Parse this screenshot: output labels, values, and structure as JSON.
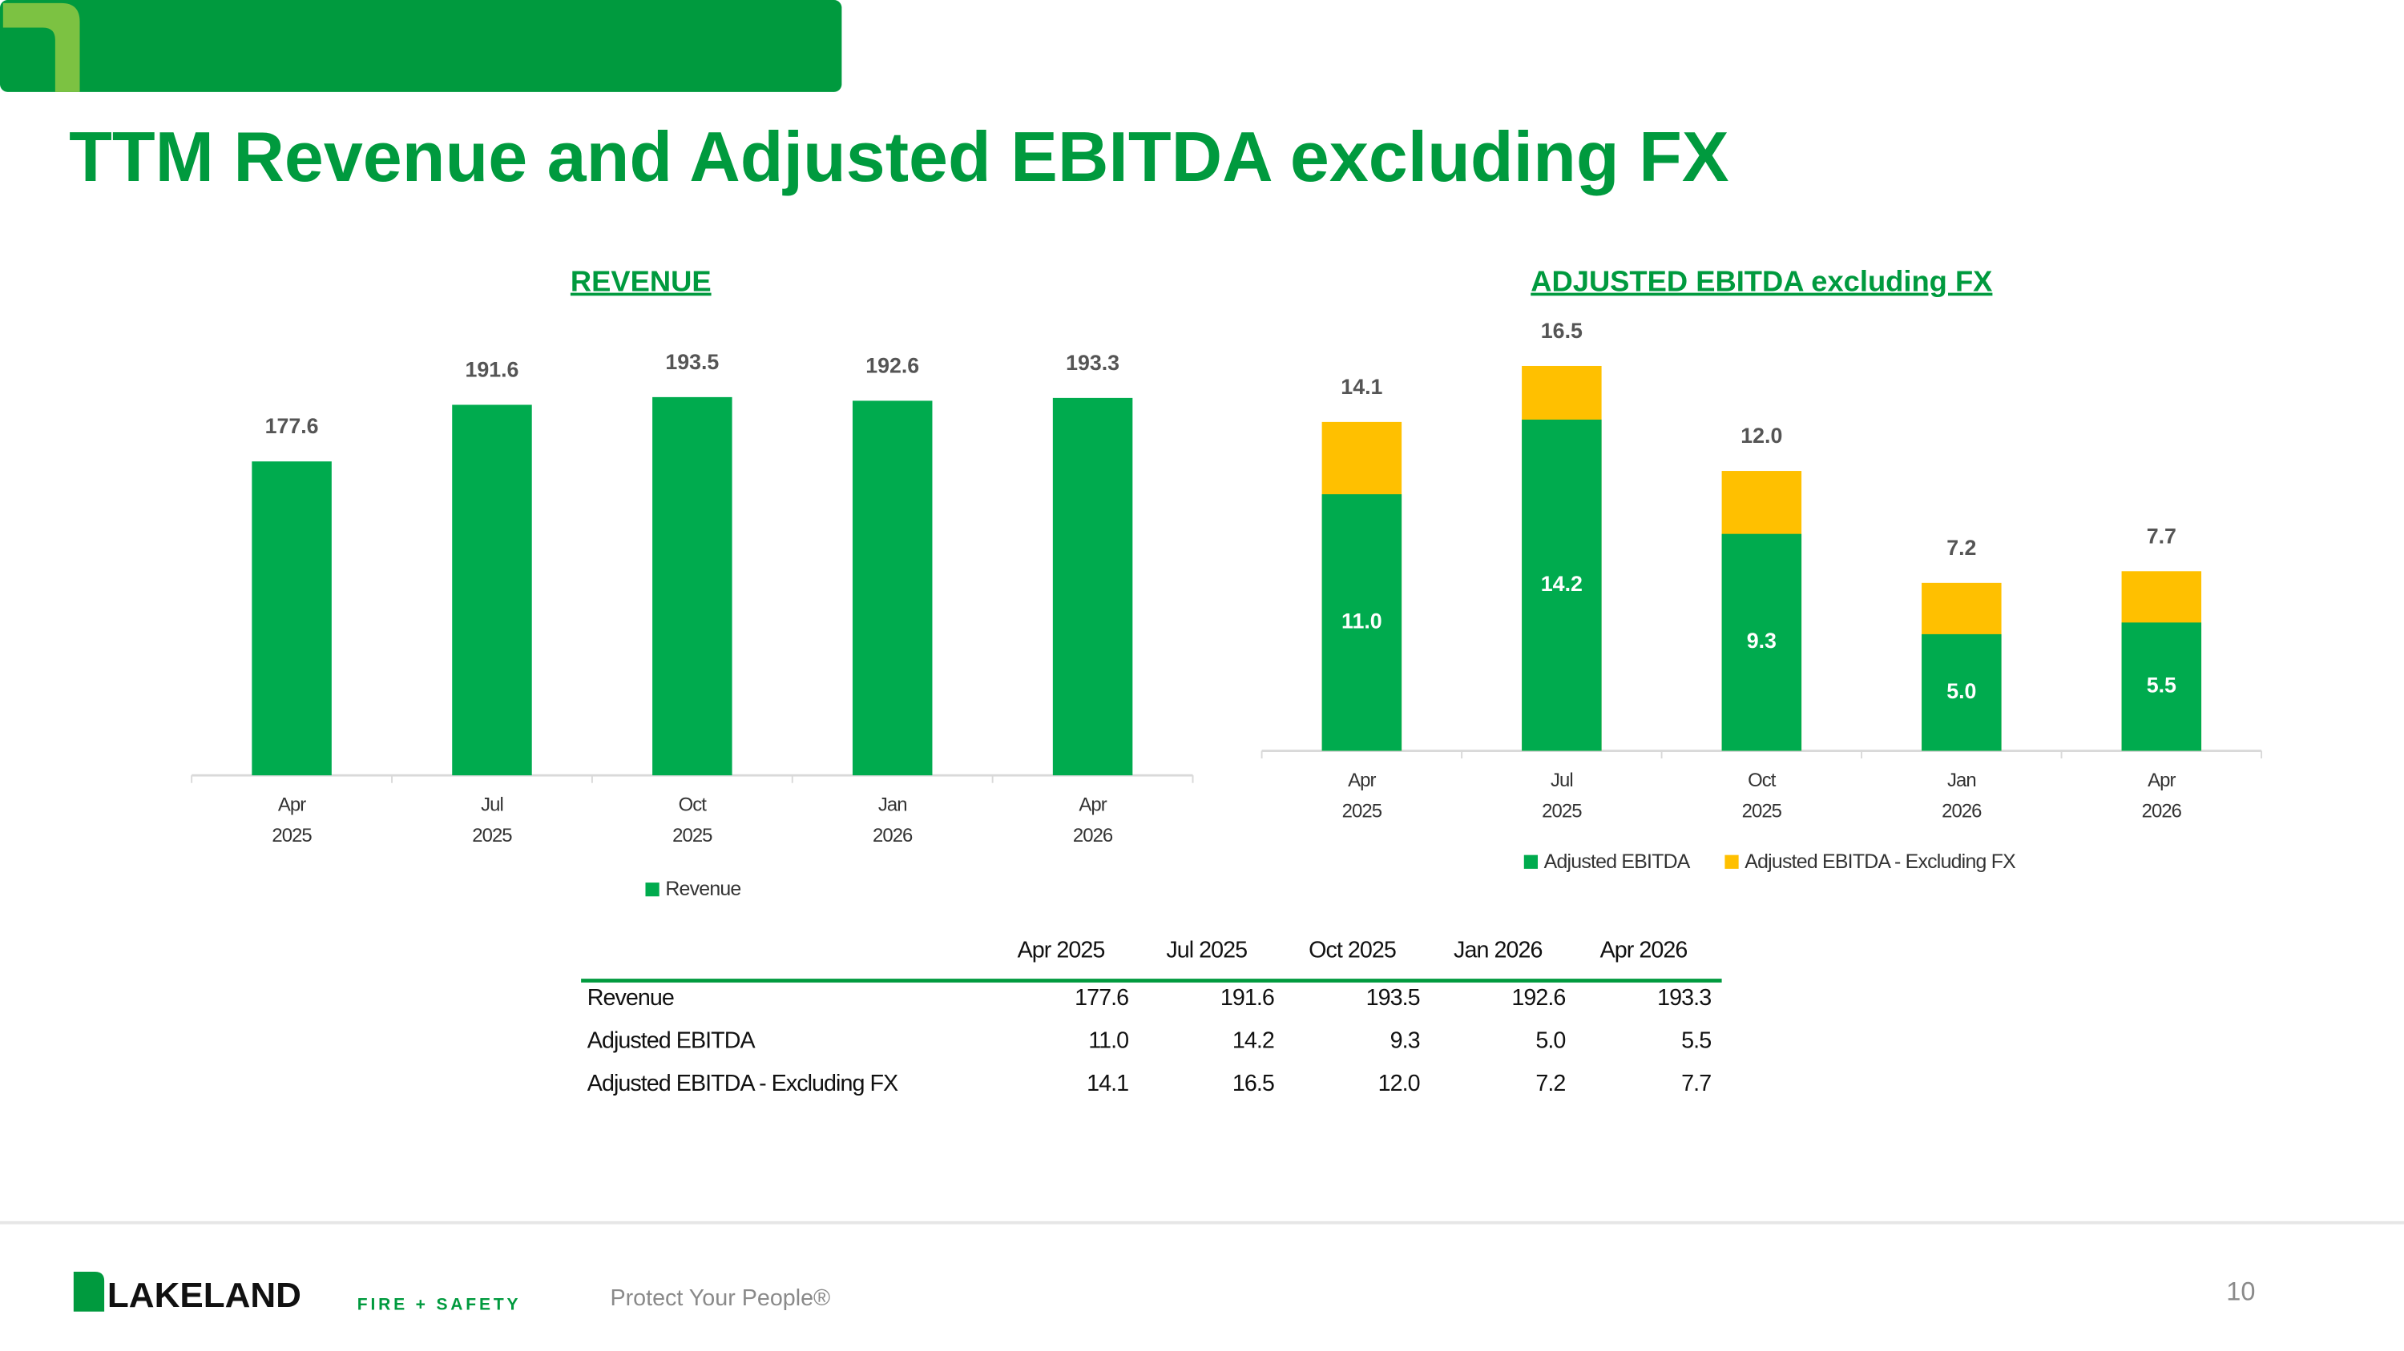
{
  "title": "TTM Revenue and Adjusted EBITDA excluding FX",
  "chart_data": [
    {
      "type": "bar",
      "title": "REVENUE",
      "categories": [
        [
          "Apr",
          "2025"
        ],
        [
          "Jul",
          "2025"
        ],
        [
          "Oct",
          "2025"
        ],
        [
          "Jan",
          "2026"
        ],
        [
          "Apr",
          "2026"
        ]
      ],
      "series": [
        {
          "name": "Revenue",
          "color": "#00ab4e",
          "values": [
            177.6,
            191.6,
            193.5,
            192.6,
            193.3
          ]
        }
      ],
      "ylim": [
        100,
        200
      ]
    },
    {
      "type": "bar",
      "title": "ADJUSTED EBITDA excluding FX",
      "overlap": true,
      "categories": [
        [
          "Apr",
          "2025"
        ],
        [
          "Jul",
          "2025"
        ],
        [
          "Oct",
          "2025"
        ],
        [
          "Jan",
          "2026"
        ],
        [
          "Apr",
          "2026"
        ]
      ],
      "series": [
        {
          "name": "Adjusted EBITDA",
          "color": "#00ab4e",
          "values": [
            11.0,
            14.2,
            9.3,
            5.0,
            5.5
          ],
          "value_labels": [
            "11.0",
            "14.2",
            "9.3",
            "5.0",
            "5.5"
          ]
        },
        {
          "name": "Adjusted EBITDA - Excluding FX",
          "color": "#ffc000",
          "values": [
            14.1,
            16.5,
            12.0,
            7.2,
            7.7
          ],
          "value_labels": [
            "14.1",
            "16.5",
            "12.0",
            "7.2",
            "7.7"
          ]
        }
      ],
      "ylim": [
        0,
        18
      ]
    }
  ],
  "table": {
    "columns": [
      "Apr 2025",
      "Jul 2025",
      "Oct 2025",
      "Jan 2026",
      "Apr 2026"
    ],
    "rows": [
      [
        "Revenue",
        "177.6",
        "191.6",
        "193.5",
        "192.6",
        "193.3"
      ],
      [
        "Adjusted EBITDA",
        "11.0",
        "14.2",
        "9.3",
        "5.0",
        "5.5"
      ],
      [
        "Adjusted EBITDA - Excluding FX",
        "14.1",
        "16.5",
        "12.0",
        "7.2",
        "7.7"
      ]
    ]
  },
  "footer": {
    "brand": "LAKELAND",
    "brand_sub": "FIRE + SAFETY",
    "tagline": "Protect Your People®",
    "page": "10"
  }
}
